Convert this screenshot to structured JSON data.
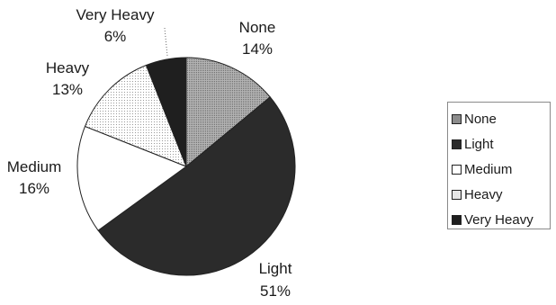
{
  "chart_data": {
    "type": "pie",
    "title": "",
    "categories": [
      "None",
      "Light",
      "Medium",
      "Heavy",
      "Very Heavy"
    ],
    "values": [
      14,
      51,
      16,
      13,
      6
    ],
    "labels": [
      "14%",
      "51%",
      "16%",
      "13%",
      "6%"
    ],
    "colors": [
      "#8c8c8c",
      "#2b2b2b",
      "#ffffff",
      "#e2e2e2",
      "#1f1f1f"
    ],
    "legend": {
      "position": "right",
      "entries": [
        "None",
        "Light",
        "Medium",
        "Heavy",
        "Very Heavy"
      ]
    }
  }
}
